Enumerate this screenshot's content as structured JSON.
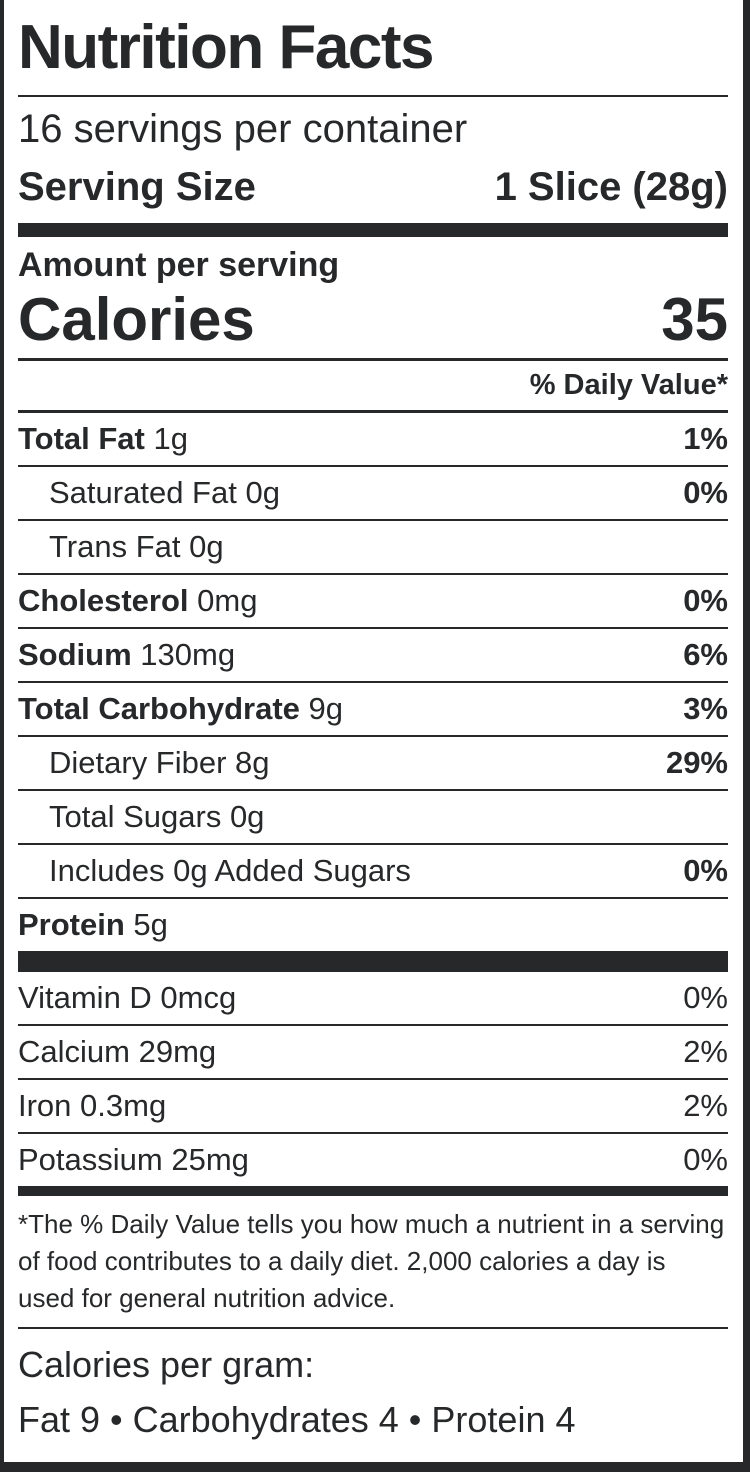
{
  "label": {
    "title": "Nutrition Facts",
    "servings_per_container": "16 servings per container",
    "serving_size_label": "Serving Size",
    "serving_size_value": "1 Slice (28g)",
    "amount_per_serving": "Amount per serving",
    "calories_label": "Calories",
    "calories_value": "35",
    "daily_value_header": "% Daily Value*",
    "nutrients": [
      {
        "name": "Total Fat",
        "amount": "1g",
        "dv": "1%",
        "style": "main"
      },
      {
        "name": "Saturated Fat",
        "amount": "0g",
        "dv": "0%",
        "style": "indent"
      },
      {
        "name": "Trans Fat",
        "amount": "0g",
        "dv": "",
        "style": "indent"
      },
      {
        "name": "Cholesterol",
        "amount": "0mg",
        "dv": "0%",
        "style": "main"
      },
      {
        "name": "Sodium",
        "amount": "130mg",
        "dv": "6%",
        "style": "main"
      },
      {
        "name": "Total Carbohydrate",
        "amount": "9g",
        "dv": "3%",
        "style": "main"
      },
      {
        "name": "Dietary Fiber",
        "amount": "8g",
        "dv": "29%",
        "style": "indent"
      },
      {
        "name": "Total Sugars",
        "amount": "0g",
        "dv": "",
        "style": "indent"
      },
      {
        "name": "Includes 0g Added Sugars",
        "amount": "",
        "dv": "0%",
        "style": "indent"
      },
      {
        "name": "Protein",
        "amount": "5g",
        "dv": "",
        "style": "main"
      }
    ],
    "vitamins": [
      {
        "name": "Vitamin D",
        "amount": "0mcg",
        "dv": "0%"
      },
      {
        "name": "Calcium",
        "amount": "29mg",
        "dv": "2%"
      },
      {
        "name": "Iron",
        "amount": "0.3mg",
        "dv": "2%"
      },
      {
        "name": "Potassium",
        "amount": "25mg",
        "dv": "0%"
      }
    ],
    "footnote": "*The % Daily Value tells you how much a nutrient in a serving of food contributes to a daily diet. 2,000 calories a day is used for general nutrition advice.",
    "calories_per_gram_label": "Calories per gram:",
    "calories_per_gram_value": "Fat 9 • Carbohydrates 4 • Protein 4",
    "colors": {
      "text": "#26282a",
      "background": "#ffffff"
    }
  }
}
